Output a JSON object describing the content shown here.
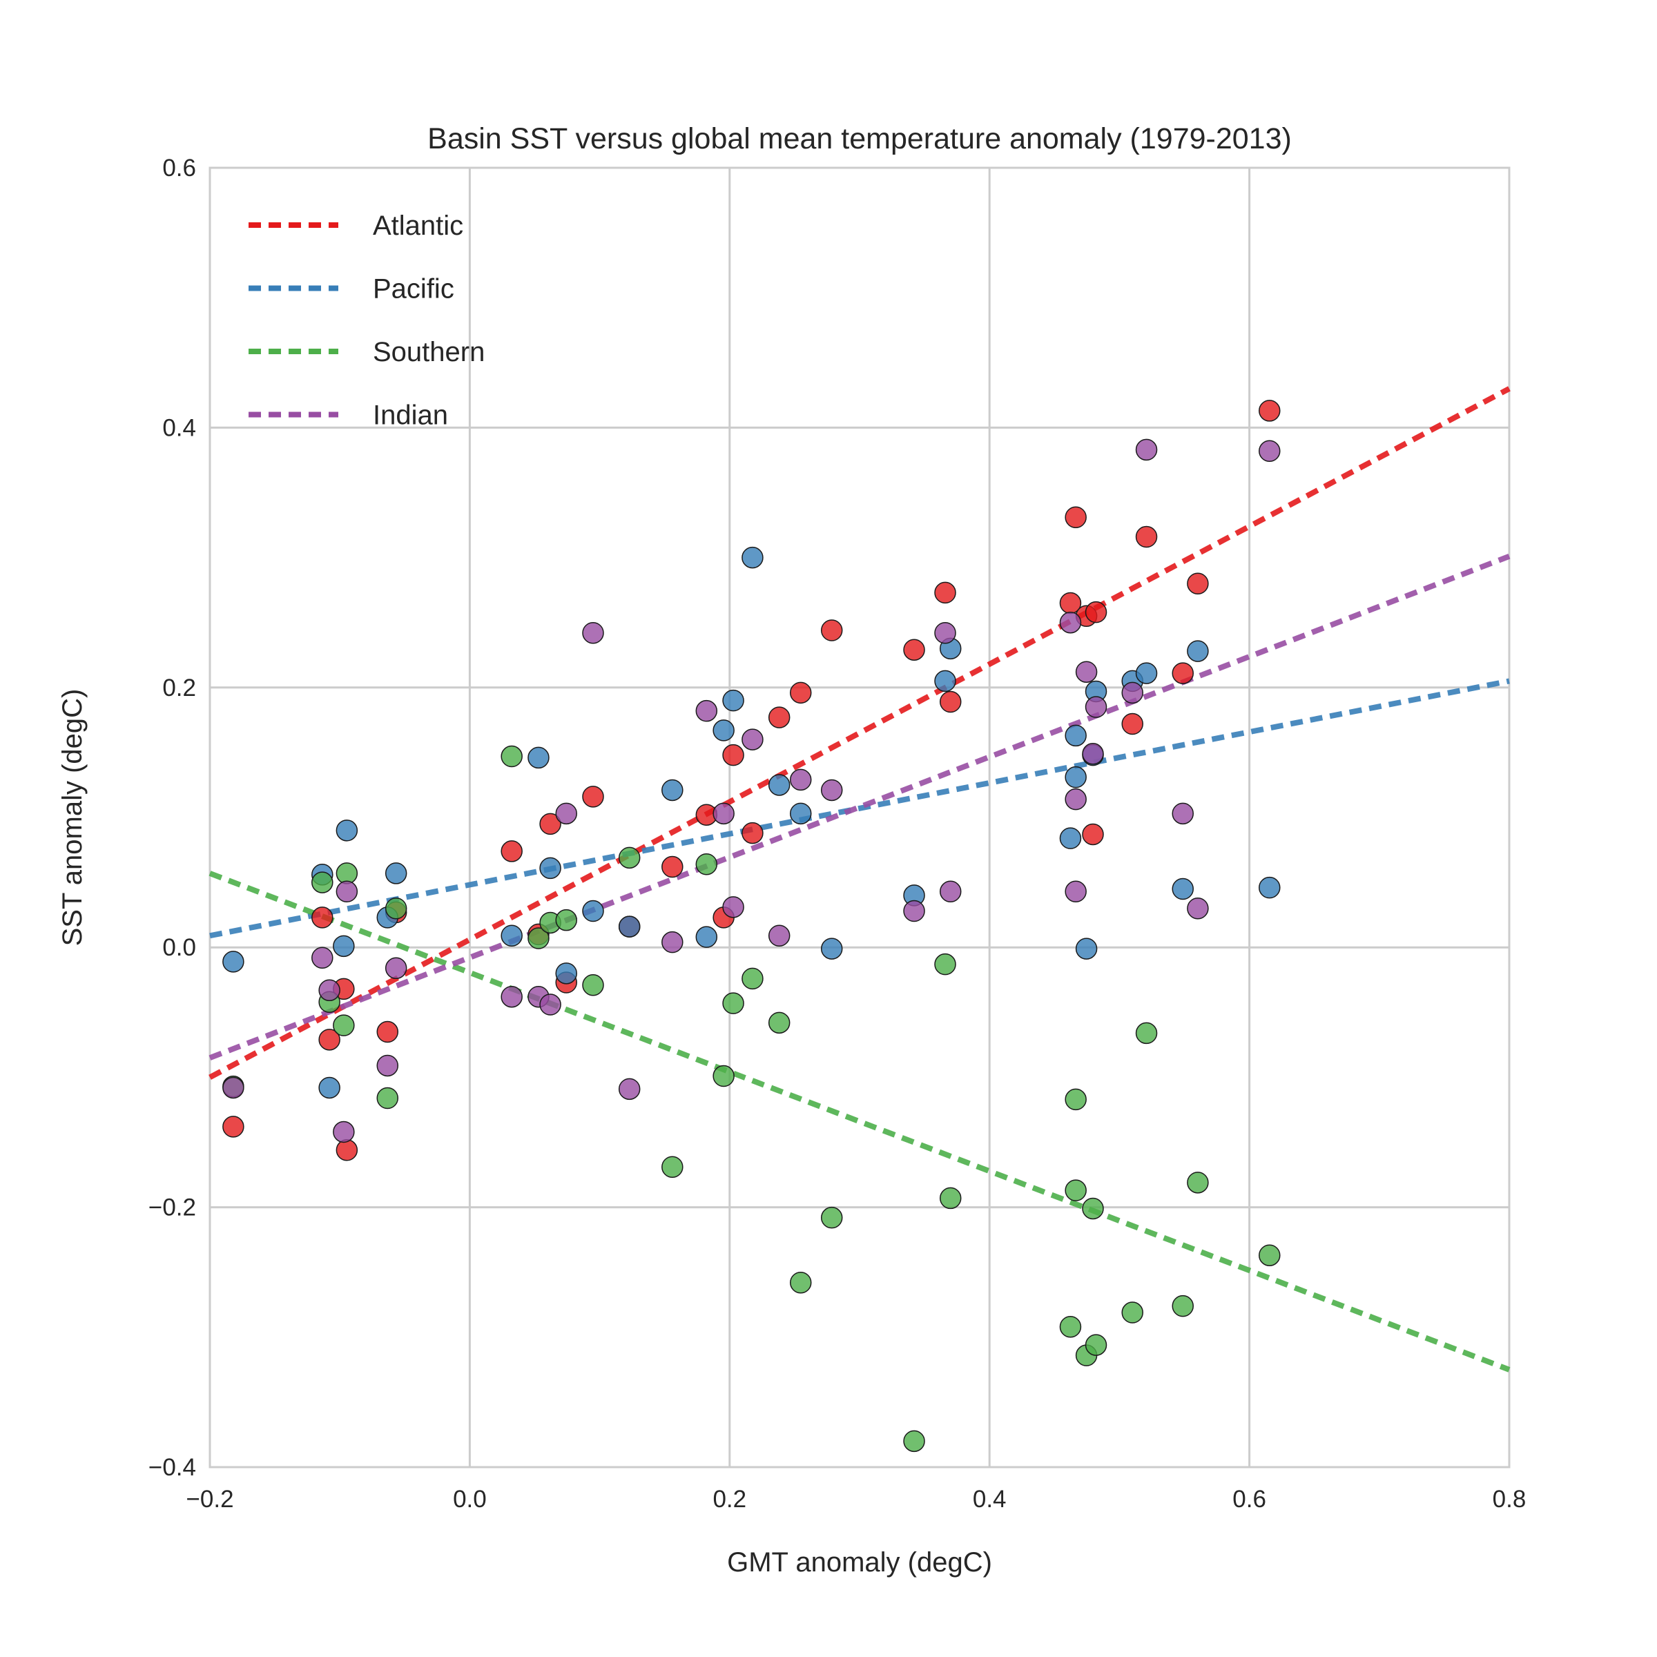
{
  "chart_data": {
    "type": "scatter",
    "title": "Basin SST versus global mean temperature anomaly (1979-2013)",
    "xlabel": "GMT anomaly (degC)",
    "ylabel": "SST anomaly (degC)",
    "xlim": [
      -0.2,
      0.8
    ],
    "ylim": [
      -0.4,
      0.6
    ],
    "xticks": [
      -0.2,
      0.0,
      0.2,
      0.4,
      0.6,
      0.8
    ],
    "yticks": [
      -0.4,
      -0.2,
      0.0,
      0.2,
      0.4,
      0.6
    ],
    "xtick_labels": [
      "−0.2",
      "0.0",
      "0.2",
      "0.4",
      "0.6",
      "0.8"
    ],
    "ytick_labels": [
      "−0.4",
      "−0.2",
      "0.0",
      "0.2",
      "0.4",
      "0.6"
    ],
    "grid": true,
    "legend_position": "top-left",
    "series": [
      {
        "name": "Atlantic",
        "color": "#e41a1c",
        "fit": {
          "x": [
            -0.2,
            0.8
          ],
          "y": [
            -0.1,
            0.43
          ]
        },
        "points": [
          [
            -0.182,
            -0.138
          ],
          [
            -0.1135,
            0.023
          ],
          [
            -0.108,
            -0.071
          ],
          [
            -0.097,
            -0.032
          ],
          [
            -0.0946,
            -0.156
          ],
          [
            -0.0633,
            -0.065
          ],
          [
            -0.0567,
            0.027
          ],
          [
            0.0323,
            0.074
          ],
          [
            0.0529,
            0.01
          ],
          [
            0.062,
            0.095
          ],
          [
            0.0743,
            -0.027
          ],
          [
            0.0949,
            0.116
          ],
          [
            0.1229,
            0.016
          ],
          [
            0.1559,
            0.062
          ],
          [
            0.1822,
            0.102
          ],
          [
            0.1954,
            0.023
          ],
          [
            0.2028,
            0.148
          ],
          [
            0.2176,
            0.088
          ],
          [
            0.2382,
            0.177
          ],
          [
            0.2547,
            0.196
          ],
          [
            0.2786,
            0.244
          ],
          [
            0.342,
            0.229
          ],
          [
            0.3659,
            0.273
          ],
          [
            0.37,
            0.189
          ],
          [
            0.4623,
            0.265
          ],
          [
            0.4664,
            0.331
          ],
          [
            0.4746,
            0.255
          ],
          [
            0.4796,
            0.087
          ],
          [
            0.482,
            0.258
          ],
          [
            0.51,
            0.172
          ],
          [
            0.5208,
            0.316
          ],
          [
            0.5488,
            0.211
          ],
          [
            0.5603,
            0.28
          ],
          [
            0.6155,
            0.413
          ]
        ]
      },
      {
        "name": "Pacific",
        "color": "#377eb8",
        "fit": {
          "x": [
            -0.2,
            0.8
          ],
          "y": [
            0.009,
            0.205
          ]
        },
        "points": [
          [
            -0.182,
            -0.011
          ],
          [
            -0.1135,
            0.056
          ],
          [
            -0.108,
            -0.108
          ],
          [
            -0.097,
            0.001
          ],
          [
            -0.0946,
            0.09
          ],
          [
            -0.0633,
            0.023
          ],
          [
            -0.0567,
            0.057
          ],
          [
            0.0323,
            0.009
          ],
          [
            0.0529,
            0.146
          ],
          [
            0.062,
            0.061
          ],
          [
            0.0743,
            -0.02
          ],
          [
            0.0949,
            0.028
          ],
          [
            0.1229,
            0.016
          ],
          [
            0.1559,
            0.121
          ],
          [
            0.1822,
            0.008
          ],
          [
            0.1954,
            0.167
          ],
          [
            0.2028,
            0.19
          ],
          [
            0.2176,
            0.3
          ],
          [
            0.2382,
            0.125
          ],
          [
            0.2547,
            0.103
          ],
          [
            0.2786,
            -0.001
          ],
          [
            0.342,
            0.04
          ],
          [
            0.3659,
            0.205
          ],
          [
            0.37,
            0.23
          ],
          [
            0.4623,
            0.084
          ],
          [
            0.4664,
            0.163
          ],
          [
            0.4664,
            0.131
          ],
          [
            0.4746,
            -0.001
          ],
          [
            0.4796,
            0.148
          ],
          [
            0.482,
            0.197
          ],
          [
            0.51,
            0.205
          ],
          [
            0.5208,
            0.211
          ],
          [
            0.5488,
            0.045
          ],
          [
            0.5603,
            0.228
          ],
          [
            0.6155,
            0.046
          ]
        ]
      },
      {
        "name": "Southern",
        "color": "#4daf4a",
        "fit": {
          "x": [
            -0.2,
            0.8
          ],
          "y": [
            0.057,
            -0.325
          ]
        },
        "points": [
          [
            -0.182,
            -0.107
          ],
          [
            -0.1135,
            0.05
          ],
          [
            -0.108,
            -0.042
          ],
          [
            -0.097,
            -0.06
          ],
          [
            -0.0946,
            0.057
          ],
          [
            -0.0633,
            -0.116
          ],
          [
            -0.0567,
            0.03
          ],
          [
            0.0323,
            0.147
          ],
          [
            0.0529,
            0.007
          ],
          [
            0.062,
            0.019
          ],
          [
            0.0743,
            0.021
          ],
          [
            0.0949,
            -0.029
          ],
          [
            0.1229,
            0.069
          ],
          [
            0.1559,
            -0.169
          ],
          [
            0.1822,
            0.064
          ],
          [
            0.1954,
            -0.099
          ],
          [
            0.2028,
            -0.043
          ],
          [
            0.2176,
            -0.024
          ],
          [
            0.2382,
            -0.058
          ],
          [
            0.2547,
            -0.258
          ],
          [
            0.2786,
            -0.208
          ],
          [
            0.342,
            -0.38
          ],
          [
            0.3659,
            -0.013
          ],
          [
            0.37,
            -0.193
          ],
          [
            0.4623,
            -0.292
          ],
          [
            0.4664,
            -0.117
          ],
          [
            0.4664,
            -0.187
          ],
          [
            0.4746,
            -0.314
          ],
          [
            0.4796,
            -0.201
          ],
          [
            0.482,
            -0.306
          ],
          [
            0.51,
            -0.281
          ],
          [
            0.5208,
            -0.066
          ],
          [
            0.5488,
            -0.276
          ],
          [
            0.5603,
            -0.181
          ],
          [
            0.6155,
            -0.237
          ]
        ]
      },
      {
        "name": "Indian",
        "color": "#984ea3",
        "fit": {
          "x": [
            -0.2,
            0.8
          ],
          "y": [
            -0.085,
            0.301
          ]
        },
        "points": [
          [
            -0.182,
            -0.108
          ],
          [
            -0.1135,
            -0.008
          ],
          [
            -0.108,
            -0.033
          ],
          [
            -0.097,
            -0.142
          ],
          [
            -0.0946,
            0.043
          ],
          [
            -0.0633,
            -0.091
          ],
          [
            -0.0567,
            -0.016
          ],
          [
            0.0323,
            -0.038
          ],
          [
            0.0529,
            -0.038
          ],
          [
            0.062,
            -0.044
          ],
          [
            0.0743,
            0.103
          ],
          [
            0.0949,
            0.242
          ],
          [
            0.1229,
            -0.109
          ],
          [
            0.1559,
            0.004
          ],
          [
            0.1822,
            0.182
          ],
          [
            0.1954,
            0.103
          ],
          [
            0.2028,
            0.031
          ],
          [
            0.2176,
            0.16
          ],
          [
            0.2382,
            0.009
          ],
          [
            0.2547,
            0.129
          ],
          [
            0.2786,
            0.121
          ],
          [
            0.342,
            0.028
          ],
          [
            0.3659,
            0.242
          ],
          [
            0.37,
            0.043
          ],
          [
            0.4623,
            0.25
          ],
          [
            0.4664,
            0.114
          ],
          [
            0.4664,
            0.043
          ],
          [
            0.4746,
            0.212
          ],
          [
            0.4796,
            0.149
          ],
          [
            0.482,
            0.185
          ],
          [
            0.51,
            0.196
          ],
          [
            0.5208,
            0.383
          ],
          [
            0.5488,
            0.103
          ],
          [
            0.5603,
            0.03
          ],
          [
            0.6155,
            0.382
          ]
        ]
      }
    ]
  }
}
